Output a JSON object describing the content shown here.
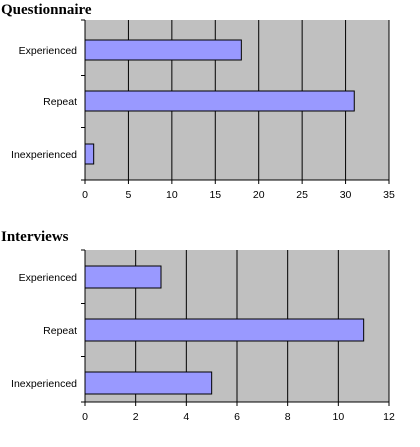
{
  "charts": [
    {
      "title": "Questionnaire"
    },
    {
      "title": "Interviews"
    }
  ],
  "colors": {
    "plot_background": "#c0c0c0",
    "bar_fill": "#9999ff",
    "bar_stroke": "#000000",
    "grid": "#000000"
  },
  "chart_data": [
    {
      "type": "bar",
      "orientation": "horizontal",
      "title": "Questionnaire",
      "categories": [
        "Experienced",
        "Repeat",
        "Inexperienced"
      ],
      "values": [
        18,
        31,
        1
      ],
      "xlim": [
        0,
        35
      ],
      "xticks": [
        0,
        5,
        10,
        15,
        20,
        25,
        30,
        35
      ],
      "grid": true
    },
    {
      "type": "bar",
      "orientation": "horizontal",
      "title": "Interviews",
      "categories": [
        "Experienced",
        "Repeat",
        "Inexperienced"
      ],
      "values": [
        3,
        11,
        5
      ],
      "xlim": [
        0,
        12
      ],
      "xticks": [
        0,
        2,
        4,
        6,
        8,
        10,
        12
      ],
      "grid": true
    }
  ]
}
